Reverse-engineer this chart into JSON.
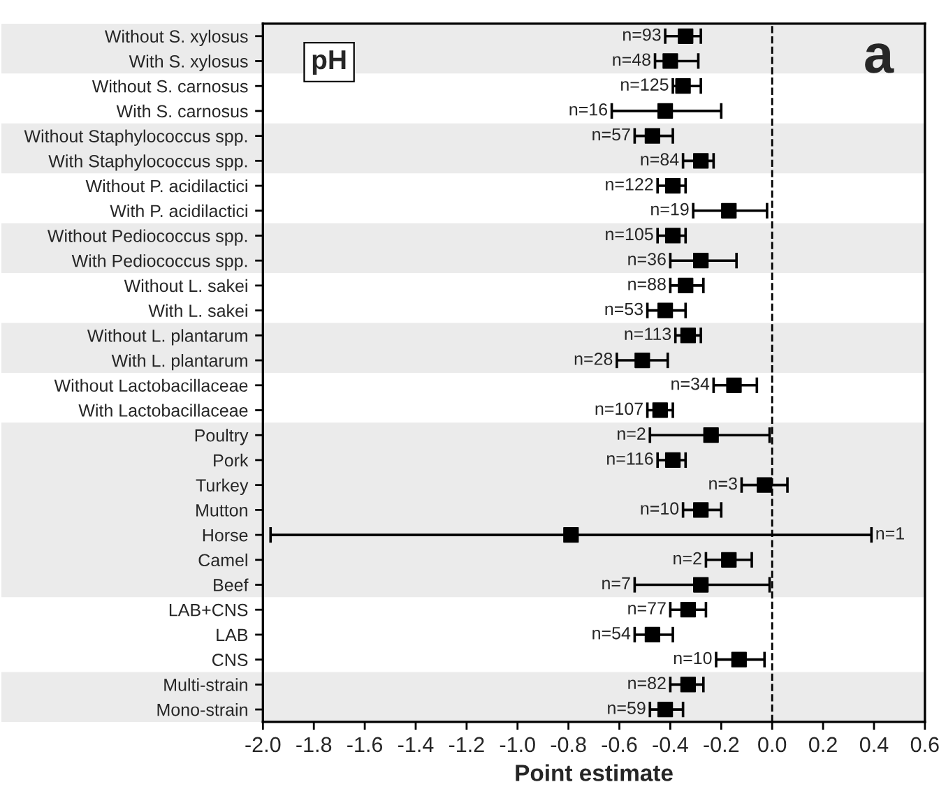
{
  "chart_data": {
    "type": "scatter",
    "orientation": "horizontal",
    "xlabel": "Point estimate",
    "categories": [
      "Without S. xylosus",
      "With S. xylosus",
      "Without S. carnosus",
      "With S. carnosus",
      "Without Staphylococcus spp.",
      "With Staphylococcus spp.",
      "Without P. acidilactici",
      "With P. acidilactici",
      "Without Pediococcus spp.",
      "With Pediococcus spp.",
      "Without L. sakei",
      "With L. sakei",
      "Without L. plantarum",
      "With L. plantarum",
      "Without Lactobacillaceae",
      "With Lactobacillaceae",
      "Poultry",
      "Pork",
      "Turkey",
      "Mutton",
      "Horse",
      "Camel",
      "Beef",
      "LAB+CNS",
      "LAB",
      "CNS",
      "Multi-strain",
      "Mono-strain"
    ],
    "series": [
      {
        "color": "#000000",
        "values": [
          -0.34,
          -0.4,
          -0.35,
          -0.42,
          -0.47,
          -0.28,
          -0.39,
          -0.17,
          -0.39,
          -0.28,
          -0.34,
          -0.42,
          -0.33,
          -0.51,
          -0.15,
          -0.44,
          -0.24,
          -0.39,
          -0.03,
          -0.28,
          -0.79,
          -0.17,
          -0.28,
          -0.33,
          -0.47,
          -0.13,
          -0.33,
          -0.42
        ],
        "errors": [
          [
            -0.42,
            -0.28
          ],
          [
            -0.46,
            -0.29
          ],
          [
            -0.39,
            -0.28
          ],
          [
            -0.63,
            -0.2
          ],
          [
            -0.54,
            -0.39
          ],
          [
            -0.35,
            -0.23
          ],
          [
            -0.45,
            -0.34
          ],
          [
            -0.31,
            -0.02
          ],
          [
            -0.45,
            -0.34
          ],
          [
            -0.4,
            -0.14
          ],
          [
            -0.4,
            -0.27
          ],
          [
            -0.49,
            -0.34
          ],
          [
            -0.38,
            -0.28
          ],
          [
            -0.61,
            -0.41
          ],
          [
            -0.23,
            -0.06
          ],
          [
            -0.49,
            -0.39
          ],
          [
            -0.48,
            -0.01
          ],
          [
            -0.45,
            -0.34
          ],
          [
            -0.12,
            0.06
          ],
          [
            -0.35,
            -0.2
          ],
          [
            -1.97,
            0.39
          ],
          [
            -0.26,
            -0.08
          ],
          [
            -0.54,
            -0.01
          ],
          [
            -0.4,
            -0.26
          ],
          [
            -0.54,
            -0.39
          ],
          [
            -0.22,
            -0.03
          ],
          [
            -0.4,
            -0.27
          ],
          [
            -0.48,
            -0.35
          ]
        ]
      }
    ],
    "marker": "square",
    "xlim": [
      -2.0,
      0.6
    ],
    "xticks": [
      {
        "value": -2.0,
        "label": "-2.0"
      },
      {
        "value": -1.8,
        "label": "-1.8"
      },
      {
        "value": -1.6,
        "label": "-1.6"
      },
      {
        "value": -1.4,
        "label": "-1.4"
      },
      {
        "value": -1.2,
        "label": "-1.2"
      },
      {
        "value": -1.0,
        "label": "-1.0"
      },
      {
        "value": -0.8,
        "label": "-0.8"
      },
      {
        "value": -0.6,
        "label": "-0.6"
      },
      {
        "value": -0.4,
        "label": "-0.4"
      },
      {
        "value": -0.2,
        "label": "-0.2"
      },
      {
        "value": 0,
        "label": "0.0"
      },
      {
        "value": 0.2,
        "label": "0.2"
      },
      {
        "value": 0.4,
        "label": "0.4"
      },
      {
        "value": 0.6,
        "label": "0.6"
      }
    ],
    "ref_lines": [
      {
        "axis": "x",
        "value": 0,
        "line_style": "dashed",
        "color": "#000000"
      }
    ],
    "bands": [
      {
        "axis": "y",
        "from": "Without S. xylosus",
        "to": "With S. xylosus",
        "color": "#ebebeb"
      },
      {
        "axis": "y",
        "from": "Without Staphylococcus spp.",
        "to": "With Staphylococcus spp.",
        "color": "#ebebeb"
      },
      {
        "axis": "y",
        "from": "Without Pediococcus spp.",
        "to": "With Pediococcus spp.",
        "color": "#ebebeb"
      },
      {
        "axis": "y",
        "from": "Without L. plantarum",
        "to": "With L. plantarum",
        "color": "#ebebeb"
      },
      {
        "axis": "y",
        "from": "Poultry",
        "to": "Beef",
        "color": "#ebebeb"
      },
      {
        "axis": "y",
        "from": "Multi-strain",
        "to": "Mono-strain",
        "color": "#ebebeb"
      }
    ],
    "annotations": [
      "pH",
      "a",
      {
        "text": "n=93",
        "x": -0.42,
        "y": "Without S. xylosus"
      },
      {
        "text": "n=48",
        "x": -0.46,
        "y": "With S. xylosus"
      },
      {
        "text": "n=125",
        "x": -0.39,
        "y": "Without S. carnosus"
      },
      {
        "text": "n=16",
        "x": -0.63,
        "y": "With S. carnosus"
      },
      {
        "text": "n=57",
        "x": -0.54,
        "y": "Without Staphylococcus spp."
      },
      {
        "text": "n=84",
        "x": -0.35,
        "y": "With Staphylococcus spp."
      },
      {
        "text": "n=122",
        "x": -0.45,
        "y": "Without P. acidilactici"
      },
      {
        "text": "n=19",
        "x": -0.31,
        "y": "With P. acidilactici"
      },
      {
        "text": "n=105",
        "x": -0.45,
        "y": "Without Pediococcus spp."
      },
      {
        "text": "n=36",
        "x": -0.4,
        "y": "With Pediococcus spp."
      },
      {
        "text": "n=88",
        "x": -0.4,
        "y": "Without L. sakei"
      },
      {
        "text": "n=53",
        "x": -0.49,
        "y": "With L. sakei"
      },
      {
        "text": "n=113",
        "x": -0.38,
        "y": "Without L. plantarum"
      },
      {
        "text": "n=28",
        "x": -0.61,
        "y": "With L. plantarum"
      },
      {
        "text": "n=34",
        "x": -0.23,
        "y": "Without Lactobacillaceae"
      },
      {
        "text": "n=107",
        "x": -0.49,
        "y": "With Lactobacillaceae"
      },
      {
        "text": "n=2",
        "x": -0.48,
        "y": "Poultry"
      },
      {
        "text": "n=116",
        "x": -0.45,
        "y": "Pork"
      },
      {
        "text": "n=3",
        "x": -0.12,
        "y": "Turkey"
      },
      {
        "text": "n=10",
        "x": -0.35,
        "y": "Mutton"
      },
      {
        "text": "n=1",
        "x": 0.39,
        "y": "Horse"
      },
      {
        "text": "n=2",
        "x": -0.26,
        "y": "Camel"
      },
      {
        "text": "n=7",
        "x": -0.54,
        "y": "Beef"
      },
      {
        "text": "n=77",
        "x": -0.4,
        "y": "LAB+CNS"
      },
      {
        "text": "n=54",
        "x": -0.54,
        "y": "LAB"
      },
      {
        "text": "n=10",
        "x": -0.22,
        "y": "CNS"
      },
      {
        "text": "n=82",
        "x": -0.4,
        "y": "Multi-strain"
      },
      {
        "text": "n=59",
        "x": -0.48,
        "y": "Mono-strain"
      }
    ],
    "grid": false,
    "legend": false
  }
}
